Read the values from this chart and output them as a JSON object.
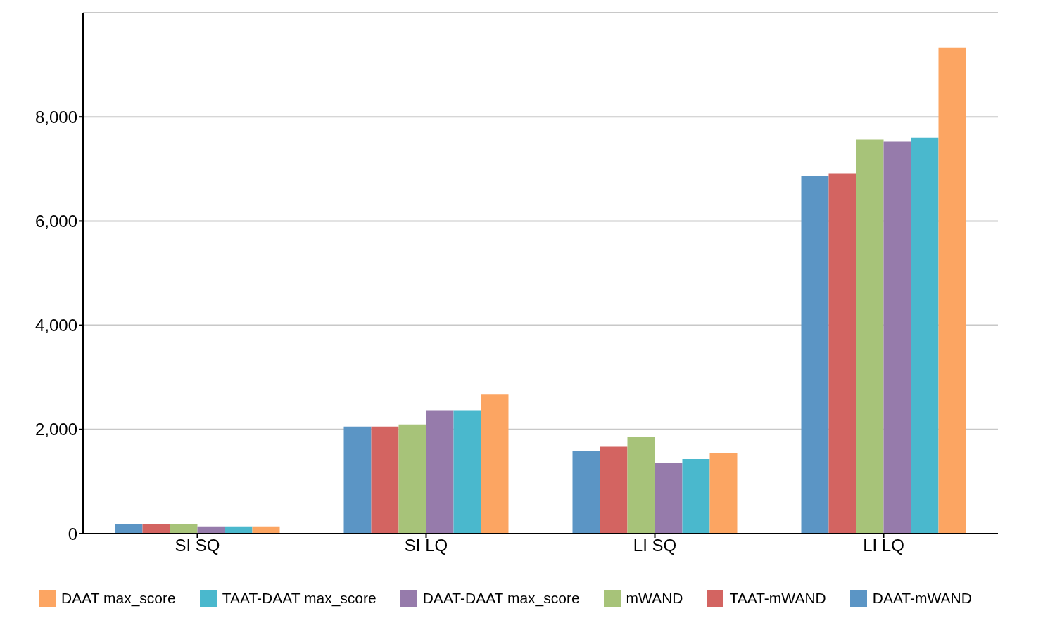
{
  "chart_data": {
    "type": "bar",
    "categories": [
      "SI SQ",
      "SI LQ",
      "LI SQ",
      "LI LQ"
    ],
    "series": [
      {
        "name": "DAAT-mWAND",
        "color": "#5b95c5",
        "values": [
          190,
          2055,
          1590,
          6870
        ]
      },
      {
        "name": "TAAT-mWAND",
        "color": "#d36461",
        "values": [
          190,
          2055,
          1665,
          6915
        ]
      },
      {
        "name": "mWAND",
        "color": "#a7c379",
        "values": [
          190,
          2095,
          1860,
          7565
        ]
      },
      {
        "name": "DAAT-DAAT max_score",
        "color": "#967bab",
        "values": [
          140,
          2370,
          1355,
          7525
        ]
      },
      {
        "name": "TAAT-DAAT max_score",
        "color": "#4ab8cd",
        "values": [
          140,
          2370,
          1430,
          7600
        ]
      },
      {
        "name": "DAAT max_score",
        "color": "#fca562",
        "values": [
          140,
          2670,
          1550,
          9330
        ]
      }
    ],
    "ylim": [
      0,
      10000
    ],
    "yticks": [
      {
        "value": 0,
        "label": "0"
      },
      {
        "value": 2000,
        "label": "2,000"
      },
      {
        "value": 4000,
        "label": "4,000"
      },
      {
        "value": 6000,
        "label": "6,000"
      },
      {
        "value": 8000,
        "label": "8,000"
      }
    ],
    "grid": "y",
    "legend": "bottom"
  }
}
